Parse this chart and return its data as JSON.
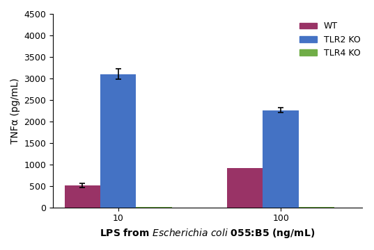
{
  "groups": [
    "10",
    "100"
  ],
  "series": [
    "WT",
    "TLR2 KO",
    "TLR4 KO"
  ],
  "values": [
    [
      510,
      920
    ],
    [
      3100,
      2260
    ],
    [
      5,
      5
    ]
  ],
  "errors": [
    [
      50,
      0
    ],
    [
      120,
      60
    ],
    [
      0,
      0
    ]
  ],
  "colors": [
    "#993366",
    "#4472C4",
    "#70AD47"
  ],
  "ylabel": "TNFα (pg/mL)",
  "xlabel": "LPS from $\\it{Escherichia\\ coli}$ 055:B5 (ng/mL)",
  "ylim": [
    0,
    4500
  ],
  "yticks": [
    0,
    500,
    1000,
    1500,
    2000,
    2500,
    3000,
    3500,
    4000,
    4500
  ],
  "bar_width": 0.22,
  "group_positions": [
    1.0,
    2.0
  ],
  "background_color": "#ffffff",
  "legend_fontsize": 9,
  "axis_fontsize": 10,
  "tick_fontsize": 9
}
